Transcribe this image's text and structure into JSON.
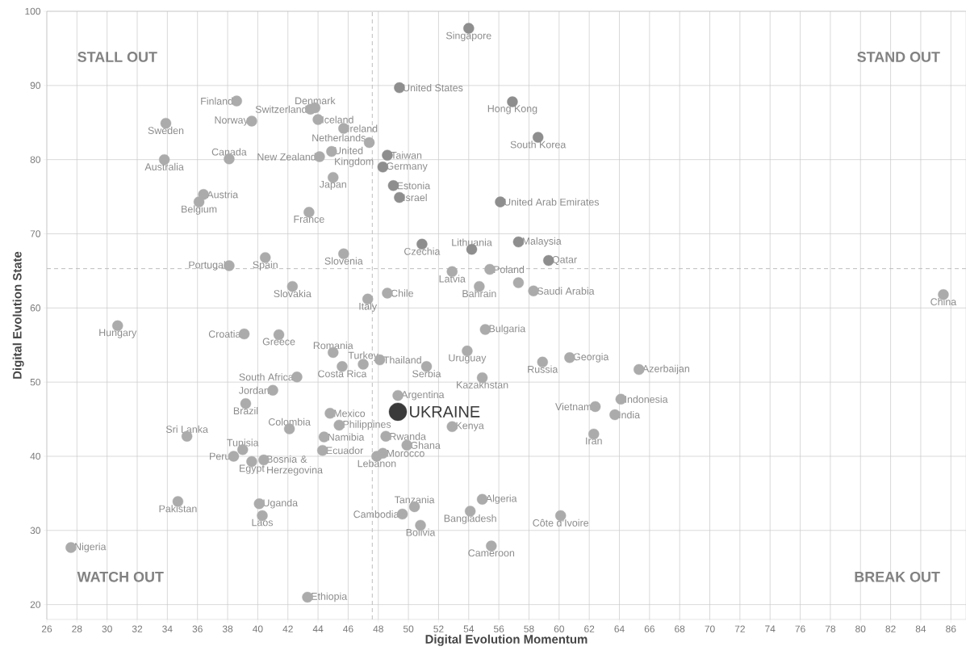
{
  "chart_data": {
    "type": "scatter",
    "xlabel": "Digital Evolution Momentum",
    "ylabel": "Digital Evolution State",
    "xlim": [
      26,
      87
    ],
    "ylim": [
      18,
      100
    ],
    "xticks": [
      26,
      28,
      30,
      32,
      34,
      36,
      38,
      40,
      42,
      44,
      46,
      48,
      50,
      52,
      54,
      56,
      58,
      60,
      62,
      64,
      66,
      68,
      70,
      72,
      74,
      76,
      78,
      80,
      82,
      84,
      86
    ],
    "yticks": [
      20,
      30,
      40,
      50,
      60,
      70,
      80,
      90,
      100
    ],
    "grid": true,
    "marker": "circle",
    "ref_lines": [
      {
        "axis": "x",
        "value": 47.6,
        "line_style": "dashed",
        "color": "#bdbdbd"
      },
      {
        "axis": "y",
        "value": 65.3,
        "line_style": "dashed",
        "color": "#bdbdbd"
      }
    ],
    "series": [
      {
        "x": [
          54.0,
          49.4,
          56.9,
          58.6,
          38.6,
          43.5,
          43.8,
          44.0,
          39.6,
          33.9,
          33.8,
          38.1,
          45.7,
          47.4,
          44.9,
          44.1,
          45.0,
          48.6,
          48.3,
          49.0,
          49.4,
          56.1,
          36.4,
          36.1,
          43.4,
          38.1,
          40.5,
          45.7,
          50.9,
          54.2,
          57.3,
          59.3,
          52.9,
          55.4,
          54.7,
          57.3,
          58.3,
          42.3,
          48.6,
          47.3,
          85.5,
          30.7,
          39.1,
          41.4,
          55.1,
          45.0,
          47.0,
          45.6,
          48.1,
          51.2,
          53.9,
          54.9,
          58.9,
          60.7,
          65.3,
          42.6,
          41.0,
          39.2,
          49.3,
          44.8,
          42.1,
          45.4,
          52.9,
          62.4,
          64.1,
          63.7,
          62.3,
          35.3,
          44.4,
          48.5,
          49.9,
          39.0,
          44.3,
          48.3,
          47.9,
          38.4,
          39.6,
          40.4,
          34.7,
          40.1,
          40.3,
          50.4,
          49.6,
          50.8,
          54.1,
          54.9,
          60.1,
          55.5,
          27.6,
          43.3
        ],
        "values": [
          97.7,
          89.7,
          87.8,
          83.0,
          87.9,
          86.8,
          87.0,
          85.4,
          85.2,
          84.9,
          80.0,
          80.1,
          84.2,
          82.3,
          81.1,
          80.4,
          77.6,
          80.6,
          79.0,
          76.5,
          74.9,
          74.3,
          75.3,
          74.3,
          72.9,
          65.7,
          66.8,
          67.3,
          68.6,
          67.9,
          68.9,
          66.4,
          64.9,
          65.2,
          62.9,
          63.4,
          62.3,
          62.9,
          62.0,
          61.2,
          61.8,
          57.6,
          56.5,
          56.4,
          57.1,
          54.0,
          52.4,
          52.1,
          53.0,
          52.1,
          54.2,
          50.6,
          52.7,
          53.3,
          51.7,
          50.7,
          48.9,
          47.1,
          48.2,
          45.8,
          43.7,
          44.2,
          44.0,
          46.7,
          47.7,
          45.6,
          43.0,
          42.7,
          42.6,
          42.7,
          41.5,
          40.9,
          40.8,
          40.4,
          40.0,
          40.0,
          39.3,
          39.5,
          33.9,
          33.6,
          32.0,
          33.2,
          32.2,
          30.7,
          32.6,
          34.2,
          32.0,
          27.9,
          27.7,
          21.0
        ],
        "colors": [
          "#8e8e8e",
          "#8e8e8e",
          "#8e8e8e",
          "#8e8e8e",
          "#ababab",
          "#ababab",
          "#ababab",
          "#ababab",
          "#ababab",
          "#ababab",
          "#ababab",
          "#ababab",
          "#ababab",
          "#ababab",
          "#ababab",
          "#ababab",
          "#ababab",
          "#8e8e8e",
          "#8e8e8e",
          "#8e8e8e",
          "#8e8e8e",
          "#8e8e8e",
          "#ababab",
          "#ababab",
          "#ababab",
          "#ababab",
          "#ababab",
          "#ababab",
          "#8e8e8e",
          "#8e8e8e",
          "#8e8e8e",
          "#8e8e8e",
          "#ababab",
          "#ababab",
          "#ababab",
          "#ababab",
          "#ababab",
          "#ababab",
          "#ababab",
          "#ababab",
          "#ababab",
          "#ababab",
          "#ababab",
          "#ababab",
          "#ababab",
          "#ababab",
          "#ababab",
          "#ababab",
          "#ababab",
          "#ababab",
          "#ababab",
          "#ababab",
          "#ababab",
          "#ababab",
          "#ababab",
          "#ababab",
          "#ababab",
          "#ababab",
          "#ababab",
          "#ababab",
          "#ababab",
          "#ababab",
          "#ababab",
          "#ababab",
          "#ababab",
          "#ababab",
          "#ababab",
          "#ababab",
          "#ababab",
          "#ababab",
          "#ababab",
          "#ababab",
          "#ababab",
          "#ababab",
          "#ababab",
          "#ababab",
          "#ababab",
          "#ababab",
          "#ababab",
          "#ababab",
          "#ababab",
          "#ababab",
          "#ababab",
          "#ababab",
          "#ababab",
          "#ababab",
          "#ababab",
          "#ababab",
          "#ababab",
          "#ababab"
        ]
      },
      {
        "name": "UKRAINE",
        "color": "#3a3a3a",
        "x": [
          49.3
        ],
        "values": [
          46.0
        ]
      }
    ],
    "annotations": [
      {
        "text": "Singapore",
        "x": 54.0,
        "y": 97.7
      },
      {
        "text": "United States",
        "x": 49.4,
        "y": 89.7
      },
      {
        "text": "Hong Kong",
        "x": 56.9,
        "y": 87.8
      },
      {
        "text": "South Korea",
        "x": 58.6,
        "y": 83.0
      },
      {
        "text": "Finland",
        "x": 38.6,
        "y": 87.9
      },
      {
        "text": "Switzerland",
        "x": 43.5,
        "y": 86.8
      },
      {
        "text": "Denmark",
        "x": 43.8,
        "y": 87.0
      },
      {
        "text": "Iceland",
        "x": 44.0,
        "y": 85.4
      },
      {
        "text": "Norway",
        "x": 39.6,
        "y": 85.2
      },
      {
        "text": "Sweden",
        "x": 33.9,
        "y": 84.9
      },
      {
        "text": "Australia",
        "x": 33.8,
        "y": 80.0
      },
      {
        "text": "Canada",
        "x": 38.1,
        "y": 80.1
      },
      {
        "text": "Ireland",
        "x": 45.7,
        "y": 84.2
      },
      {
        "text": "Netherlands",
        "x": 47.4,
        "y": 82.3
      },
      {
        "text": "United Kingdom",
        "x": 44.9,
        "y": 81.1
      },
      {
        "text": "New Zealand",
        "x": 44.1,
        "y": 80.4
      },
      {
        "text": "Japan",
        "x": 45.0,
        "y": 77.6
      },
      {
        "text": "Taiwan",
        "x": 48.6,
        "y": 80.6
      },
      {
        "text": "Germany",
        "x": 48.3,
        "y": 79.0
      },
      {
        "text": "Estonia",
        "x": 49.0,
        "y": 76.5
      },
      {
        "text": "Israel",
        "x": 49.4,
        "y": 74.9
      },
      {
        "text": "United Arab Emirates",
        "x": 56.1,
        "y": 74.3
      },
      {
        "text": "Austria",
        "x": 36.4,
        "y": 75.3
      },
      {
        "text": "Belgium",
        "x": 36.1,
        "y": 74.3
      },
      {
        "text": "France",
        "x": 43.4,
        "y": 72.9
      },
      {
        "text": "Portugal",
        "x": 38.1,
        "y": 65.7
      },
      {
        "text": "Spain",
        "x": 40.5,
        "y": 66.8
      },
      {
        "text": "Slovenia",
        "x": 45.7,
        "y": 67.3
      },
      {
        "text": "Czechia",
        "x": 50.9,
        "y": 68.6
      },
      {
        "text": "Lithuania",
        "x": 54.2,
        "y": 67.9
      },
      {
        "text": "Malaysia",
        "x": 57.3,
        "y": 68.9
      },
      {
        "text": "Qatar",
        "x": 59.3,
        "y": 66.4
      },
      {
        "text": "Latvia",
        "x": 52.9,
        "y": 64.9
      },
      {
        "text": "Poland",
        "x": 55.4,
        "y": 65.2
      },
      {
        "text": "Bahrain",
        "x": 54.7,
        "y": 62.9
      },
      {
        "text": "Saudi Arabia",
        "x": 58.3,
        "y": 62.3
      },
      {
        "text": "Slovakia",
        "x": 42.3,
        "y": 62.9
      },
      {
        "text": "Chile",
        "x": 48.6,
        "y": 62.0
      },
      {
        "text": "Italy",
        "x": 47.3,
        "y": 61.2
      },
      {
        "text": "China",
        "x": 85.5,
        "y": 61.8
      },
      {
        "text": "Hungary",
        "x": 30.7,
        "y": 57.6
      },
      {
        "text": "Croatia",
        "x": 39.1,
        "y": 56.5
      },
      {
        "text": "Greece",
        "x": 41.4,
        "y": 56.4
      },
      {
        "text": "Bulgaria",
        "x": 55.1,
        "y": 57.1
      },
      {
        "text": "Romania",
        "x": 45.0,
        "y": 54.0
      },
      {
        "text": "Turkey",
        "x": 47.0,
        "y": 52.4
      },
      {
        "text": "Costa Rica",
        "x": 45.6,
        "y": 52.1
      },
      {
        "text": "Thailand",
        "x": 48.1,
        "y": 53.0
      },
      {
        "text": "Serbia",
        "x": 51.2,
        "y": 52.1
      },
      {
        "text": "Uruguay",
        "x": 53.9,
        "y": 54.2
      },
      {
        "text": "Kazakhstan",
        "x": 54.9,
        "y": 50.6
      },
      {
        "text": "Russia",
        "x": 58.9,
        "y": 52.7
      },
      {
        "text": "Georgia",
        "x": 60.7,
        "y": 53.3
      },
      {
        "text": "Azerbaijan",
        "x": 65.3,
        "y": 51.7
      },
      {
        "text": "South Africa",
        "x": 42.6,
        "y": 50.7
      },
      {
        "text": "Jordan",
        "x": 41.0,
        "y": 48.9
      },
      {
        "text": "Brazil",
        "x": 39.2,
        "y": 47.1
      },
      {
        "text": "Argentina",
        "x": 49.3,
        "y": 48.2
      },
      {
        "text": "Mexico",
        "x": 44.8,
        "y": 45.8
      },
      {
        "text": "Colombia",
        "x": 42.1,
        "y": 43.7
      },
      {
        "text": "Philippines",
        "x": 45.4,
        "y": 44.2
      },
      {
        "text": "Kenya",
        "x": 52.9,
        "y": 44.0
      },
      {
        "text": "Vietnam",
        "x": 62.4,
        "y": 46.7
      },
      {
        "text": "Indonesia",
        "x": 64.1,
        "y": 47.7
      },
      {
        "text": "India",
        "x": 63.7,
        "y": 45.6
      },
      {
        "text": "Iran",
        "x": 62.3,
        "y": 43.0
      },
      {
        "text": "Sri Lanka",
        "x": 35.3,
        "y": 42.7
      },
      {
        "text": "Namibia",
        "x": 44.4,
        "y": 42.6
      },
      {
        "text": "Rwanda",
        "x": 48.5,
        "y": 42.7
      },
      {
        "text": "Ghana",
        "x": 49.9,
        "y": 41.5
      },
      {
        "text": "Tunisia",
        "x": 39.0,
        "y": 40.9
      },
      {
        "text": "Ecuador",
        "x": 44.3,
        "y": 40.8
      },
      {
        "text": "Morocco",
        "x": 48.3,
        "y": 40.4
      },
      {
        "text": "Lebanon",
        "x": 47.9,
        "y": 40.0
      },
      {
        "text": "Peru",
        "x": 38.4,
        "y": 40.0
      },
      {
        "text": "Egypt",
        "x": 39.6,
        "y": 39.3
      },
      {
        "text": "Bosnia & Herzegovina",
        "x": 40.4,
        "y": 39.5
      },
      {
        "text": "Pakistan",
        "x": 34.7,
        "y": 33.9
      },
      {
        "text": "Uganda",
        "x": 40.1,
        "y": 33.6
      },
      {
        "text": "Laos",
        "x": 40.3,
        "y": 32.0
      },
      {
        "text": "Tanzania",
        "x": 50.4,
        "y": 33.2
      },
      {
        "text": "Cambodia",
        "x": 49.6,
        "y": 32.2
      },
      {
        "text": "Bolivia",
        "x": 50.8,
        "y": 30.7
      },
      {
        "text": "Bangladesh",
        "x": 54.1,
        "y": 32.6
      },
      {
        "text": "Algeria",
        "x": 54.9,
        "y": 34.2
      },
      {
        "text": "Côte d’Ivoire",
        "x": 60.1,
        "y": 32.0
      },
      {
        "text": "Cameroon",
        "x": 55.5,
        "y": 27.9
      },
      {
        "text": "Nigeria",
        "x": 27.6,
        "y": 27.7
      },
      {
        "text": "Ethiopia",
        "x": 43.3,
        "y": 21.0
      },
      "STALL OUT",
      "STAND OUT",
      "WATCH OUT",
      "BREAK OUT"
    ]
  }
}
